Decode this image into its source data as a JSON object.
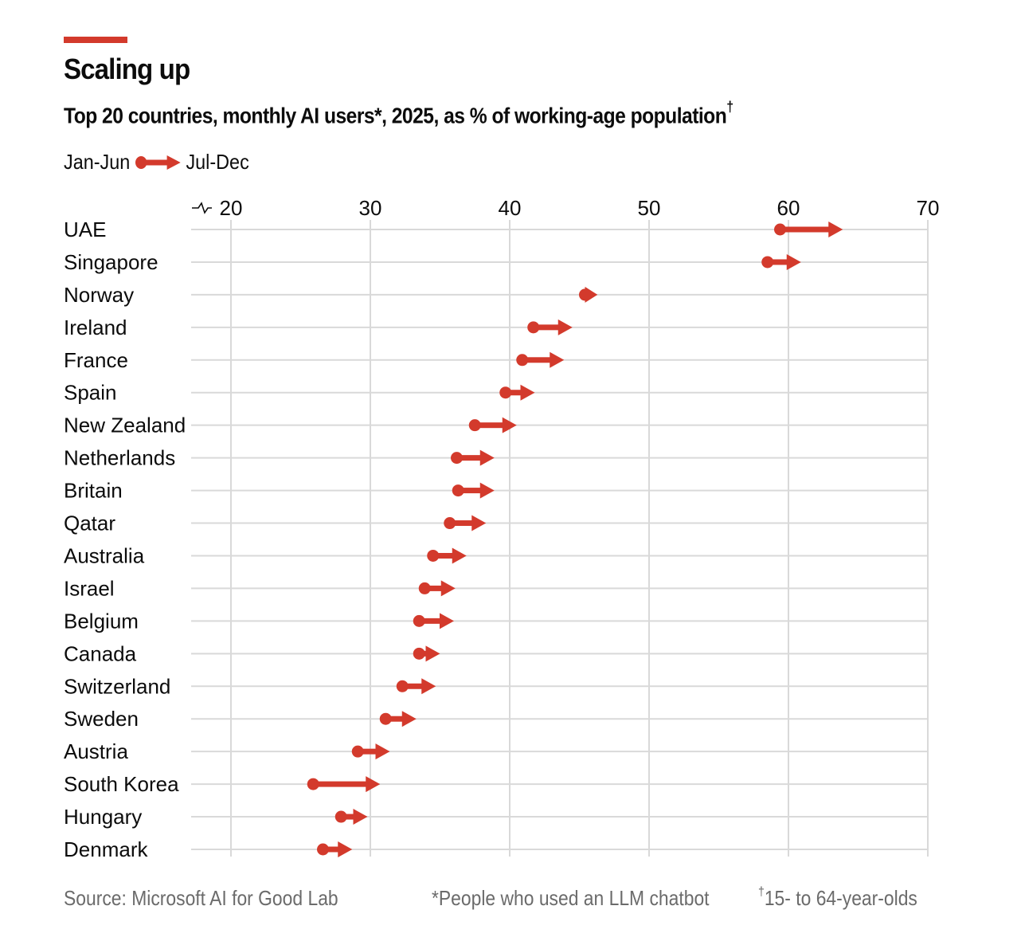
{
  "colors": {
    "accent": "#d33a2c",
    "grid": "#d9d9d9",
    "text": "#0c0c0c",
    "muted": "#6b6b6b"
  },
  "header": {
    "title": "Scaling up",
    "subtitle": "Top 20 countries, monthly AI users*, 2025, as % of working-age population",
    "subtitle_mark": "†"
  },
  "legend": {
    "start_label": "Jan-Jun",
    "end_label": "Jul-Dec"
  },
  "footer": {
    "source": "Source: Microsoft AI for Good Lab",
    "note1": "*People who used an LLM chatbot",
    "note2_mark": "†",
    "note2": "15- to 64-year-olds"
  },
  "chart_data": {
    "type": "arrow-dot",
    "title": "Scaling up",
    "subtitle": "Top 20 countries, monthly AI users*, 2025, as % of working-age population†",
    "xlabel": "",
    "ylabel": "",
    "xlim": [
      20,
      70
    ],
    "axis_break": true,
    "x_ticks": [
      20,
      30,
      40,
      50,
      60,
      70
    ],
    "grid": true,
    "legend": "top-left",
    "series": [
      {
        "name": "Jan-Jun",
        "marker": "dot"
      },
      {
        "name": "Jul-Dec",
        "marker": "arrowhead"
      }
    ],
    "categories": [
      "UAE",
      "Singapore",
      "Norway",
      "Ireland",
      "France",
      "Spain",
      "New Zealand",
      "Netherlands",
      "Britain",
      "Qatar",
      "Australia",
      "Israel",
      "Belgium",
      "Canada",
      "Switzerland",
      "Sweden",
      "Austria",
      "South Korea",
      "Hungary",
      "Denmark"
    ],
    "jan_jun": [
      59.4,
      58.5,
      45.4,
      41.7,
      40.9,
      39.7,
      37.5,
      36.2,
      36.3,
      35.7,
      34.5,
      33.9,
      33.5,
      33.5,
      32.3,
      31.1,
      29.1,
      25.9,
      27.9,
      26.6
    ],
    "jul_dec": [
      63.9,
      60.9,
      46.3,
      44.5,
      43.9,
      41.8,
      40.5,
      38.9,
      38.9,
      38.3,
      36.9,
      36.1,
      36.0,
      35.0,
      34.7,
      33.3,
      31.4,
      30.7,
      29.8,
      28.7
    ]
  }
}
